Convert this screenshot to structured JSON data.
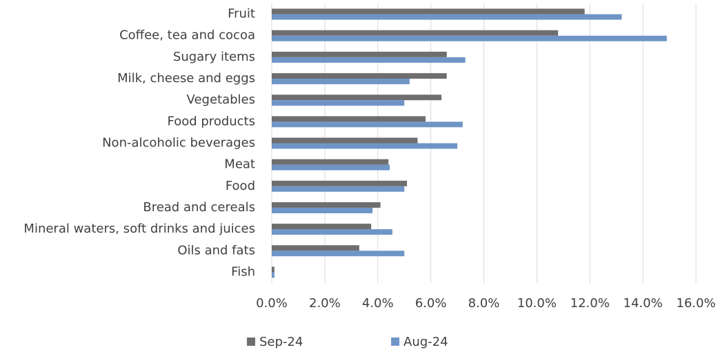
{
  "chart_data": {
    "type": "bar",
    "orientation": "horizontal",
    "categories": [
      "Fruit",
      "Coffee, tea and cocoa",
      "Sugary items",
      "Milk, cheese and eggs",
      "Vegetables",
      "Food products",
      "Non-alcoholic beverages",
      "Meat",
      "Food",
      "Bread and cereals",
      "Mineral waters, soft drinks and juices",
      "Oils and fats",
      "Fish"
    ],
    "series": [
      {
        "name": "Sep-24",
        "color": "#6e6e6e",
        "values": [
          11.8,
          10.8,
          6.6,
          6.6,
          6.4,
          5.8,
          5.5,
          4.4,
          5.1,
          4.1,
          3.75,
          3.3,
          0.1
        ]
      },
      {
        "name": "Aug-24",
        "color": "#6f95c7",
        "values": [
          13.2,
          14.9,
          7.3,
          5.2,
          5.0,
          7.2,
          7.0,
          4.45,
          5.0,
          3.8,
          4.55,
          5.0,
          0.1
        ]
      }
    ],
    "xlim": [
      0,
      16
    ],
    "xticks": [
      {
        "value": 0,
        "label": "0.0%"
      },
      {
        "value": 2,
        "label": "2.0%"
      },
      {
        "value": 4,
        "label": "4.0%"
      },
      {
        "value": 6,
        "label": "6.0%"
      },
      {
        "value": 8,
        "label": "8.0%"
      },
      {
        "value": 10,
        "label": "10.0%"
      },
      {
        "value": 12,
        "label": "12.0%"
      },
      {
        "value": 14,
        "label": "14.0%"
      },
      {
        "value": 16,
        "label": "16.0%"
      }
    ],
    "grid": true,
    "legend": "bottom"
  }
}
